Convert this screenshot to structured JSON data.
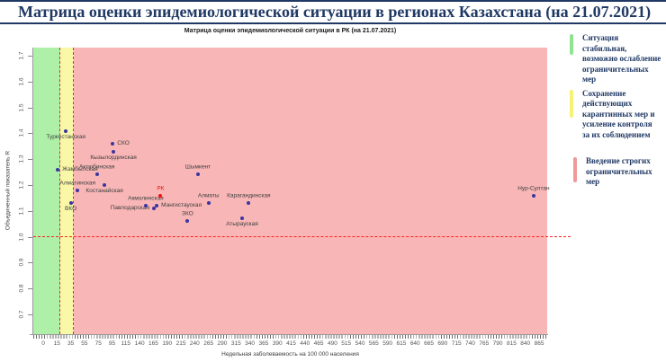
{
  "page_title": "Матрица оценки эпидемиологической ситуации в регионах Казахстана (на 21.07.2021)",
  "chart_data": {
    "type": "scatter",
    "title": "Матрица оценки эпидемиологической ситуации в РК (на 21.07.2021)",
    "xlabel": "Недельная заболеваемость на 100 000 населения",
    "ylabel": "Объединенный показатель R",
    "x_ticks": [
      0,
      15,
      35,
      55,
      75,
      95,
      115,
      140,
      165,
      190,
      215,
      240,
      265,
      290,
      315,
      340,
      365,
      390,
      415,
      440,
      465,
      490,
      515,
      540,
      565,
      590,
      615,
      640,
      665,
      690,
      715,
      740,
      765,
      790,
      815,
      840,
      865
    ],
    "y_ticks": [
      1.7,
      1.6,
      1.5,
      1.4,
      1.3,
      1.2,
      1.1,
      1.0,
      0.9,
      0.8,
      0.7
    ],
    "ylim": [
      0.65,
      1.73
    ],
    "grid": false,
    "legend_position": "right",
    "reference_line_r": 1.0,
    "zones": [
      {
        "name": "green",
        "color": "#aef0a8",
        "x_to": 20
      },
      {
        "name": "yellow",
        "color": "#f8f8a8",
        "x_to": 40
      },
      {
        "name": "red",
        "color": "#f8b6b6",
        "x_to": null
      }
    ],
    "points": [
      {
        "name": "Туркестанская",
        "x": 28,
        "r": 1.41,
        "label_pos": "below"
      },
      {
        "name": "СКО",
        "x": 96,
        "r": 1.36,
        "label_pos": "right"
      },
      {
        "name": "Кызылординская",
        "x": 97,
        "r": 1.33,
        "label_pos": "below"
      },
      {
        "name": "Жамбылская",
        "x": 16,
        "r": 1.26,
        "label_pos": "right"
      },
      {
        "name": "Актюбинская",
        "x": 73,
        "r": 1.24,
        "label_pos": "above"
      },
      {
        "name": "Шымкент",
        "x": 246,
        "r": 1.24,
        "label_pos": "above"
      },
      {
        "name": "Костанайская",
        "x": 84,
        "r": 1.2,
        "label_pos": "below"
      },
      {
        "name": "Алматинская",
        "x": 45,
        "r": 1.18,
        "label_pos": "above"
      },
      {
        "name": "РК",
        "x": 178,
        "r": 1.16,
        "label_pos": "above",
        "color": "#fb0d0d"
      },
      {
        "name": "Нур-Султан",
        "x": 855,
        "r": 1.16,
        "label_pos": "above"
      },
      {
        "name": "ВКО",
        "x": 35,
        "r": 1.13,
        "label_pos": "below"
      },
      {
        "name": "Алматы",
        "x": 265,
        "r": 1.13,
        "label_pos": "above"
      },
      {
        "name": "Карагандинская",
        "x": 338,
        "r": 1.13,
        "label_pos": "above"
      },
      {
        "name": "Акмолинская",
        "x": 151,
        "r": 1.12,
        "label_pos": "above"
      },
      {
        "name": "Мангистауская",
        "x": 171,
        "r": 1.12,
        "label_pos": "right"
      },
      {
        "name": "Павлодарская",
        "x": 166,
        "r": 1.11,
        "label_pos": "left"
      },
      {
        "name": "Атырауская",
        "x": 326,
        "r": 1.07,
        "label_pos": "below"
      },
      {
        "name": "ЗКО",
        "x": 227,
        "r": 1.06,
        "label_pos": "above"
      }
    ]
  },
  "legend": {
    "items": [
      {
        "color": "#8fe48f",
        "text": "Ситуация\nстабильная,\nвозможно ослабление\nограничительных\nмер"
      },
      {
        "color": "#f6f272",
        "text": "Сохранение\nдействующих\nкарантинных мер и\nусиление контроля\nза их соблюдением"
      },
      {
        "color": "#f09a9a",
        "text": "Введение строгих\nограничительных\nмер"
      }
    ]
  },
  "colors": {
    "page_title": "#1f3864",
    "reference_line": "#ff2222",
    "threshold_line": "#d93030",
    "point": "#3a36a0",
    "rk_point": "#fb0d0d",
    "zone_green": "#aef0a8",
    "zone_yellow": "#f8f8a8",
    "zone_red": "#f8b6b6"
  }
}
